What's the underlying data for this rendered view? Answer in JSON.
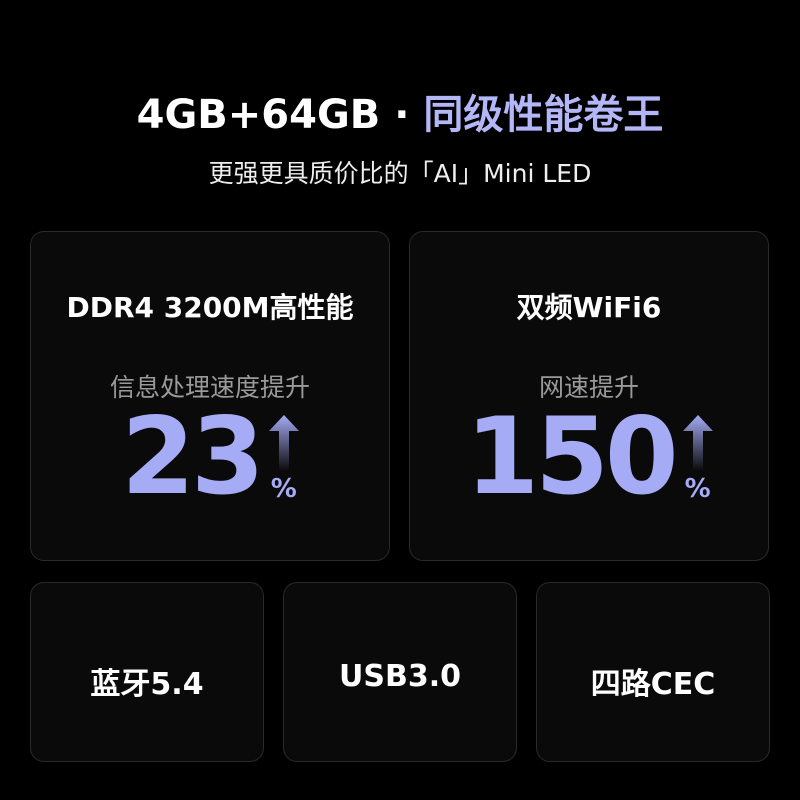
{
  "header": {
    "title_main": "4GB+64GB",
    "title_sep": "·",
    "title_accent": "同级性能卷王",
    "subtitle": "更强更具质价比的「AI」Mini LED"
  },
  "colors": {
    "accent": "#a5abf5",
    "card_border": "#2a2a2c"
  },
  "cards": [
    {
      "title": "DDR4 3200M高性能",
      "caption": "信息处理速度提升",
      "value": "23",
      "unit": "%",
      "icon": "arrow-up-icon"
    },
    {
      "title": "双频WiFi6",
      "caption": "网速提升",
      "value": "150",
      "unit": "%",
      "icon": "arrow-up-icon"
    }
  ],
  "features": [
    {
      "label": "蓝牙5.4"
    },
    {
      "label": "USB3.0"
    },
    {
      "label": "四路CEC"
    }
  ]
}
